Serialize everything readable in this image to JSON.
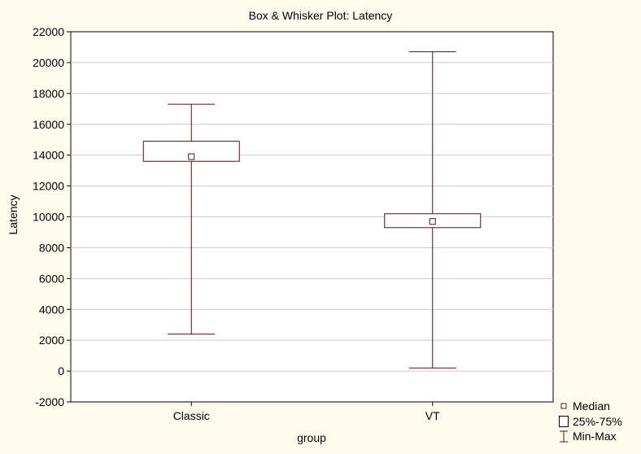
{
  "chart_data": {
    "type": "box",
    "title": "Box & Whisker Plot:  Latency",
    "xlabel": "group",
    "ylabel": "Latency",
    "ylim": [
      -2000,
      22000
    ],
    "yticks": [
      -2000,
      0,
      2000,
      4000,
      6000,
      8000,
      10000,
      12000,
      14000,
      16000,
      18000,
      20000,
      22000
    ],
    "grid": true,
    "legend_position": "bottom-right",
    "categories": [
      "Classic",
      "VT"
    ],
    "series": [
      {
        "category": "Classic",
        "min": 2400,
        "q1": 13600,
        "median": 13900,
        "q3": 14900,
        "max": 17300
      },
      {
        "category": "VT",
        "min": 200,
        "q1": 9300,
        "median": 9700,
        "q3": 10200,
        "max": 20700
      }
    ],
    "legend": [
      {
        "label": "Median",
        "symbol": "small-square"
      },
      {
        "label": "25%-75%",
        "symbol": "box"
      },
      {
        "label": "Min-Max",
        "symbol": "whisker"
      }
    ],
    "colors": {
      "background": "#fffcee",
      "plot_area": "#ffffff",
      "box_stroke": "#5c0f0f",
      "grid": "#cccccc"
    }
  }
}
